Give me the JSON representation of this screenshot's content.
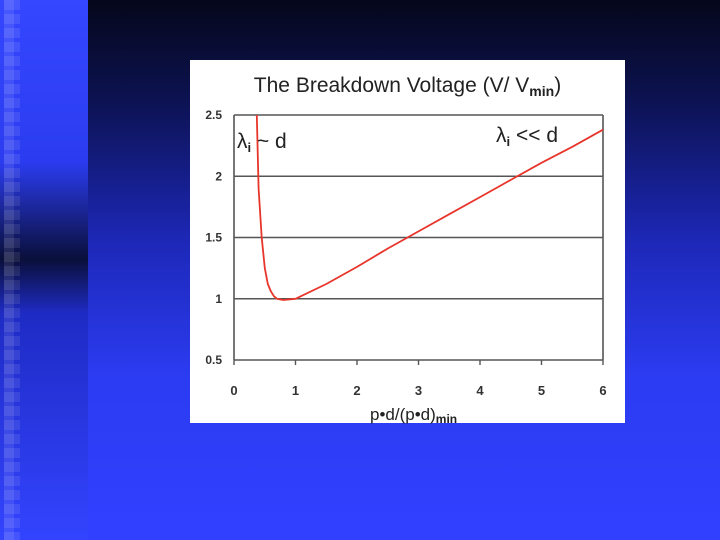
{
  "slide": {
    "accent": "#3040ff"
  },
  "chart_data": {
    "type": "line",
    "title_main": "The Breakdown Voltage (V/ V",
    "title_sub": "min",
    "title_close": ")",
    "xlabel_main": "p•d/(p•d)",
    "xlabel_sub": "min",
    "ylabel": "",
    "xlim": [
      0,
      6
    ],
    "ylim": [
      0.5,
      2.5
    ],
    "x_ticks": [
      "0",
      "1",
      "2",
      "3",
      "4",
      "5",
      "6"
    ],
    "y_ticks": [
      "0.5",
      "1",
      "1.5",
      "2",
      "2.5"
    ],
    "grid": "horizontal",
    "line_color": "#e8352b",
    "annotations": {
      "left_symbol": "λ",
      "left_sub": "i",
      "left_rest": " ~ d",
      "right_symbol": "λ",
      "right_sub": "i",
      "right_rest": " << d"
    },
    "series": [
      {
        "x": [
          0.37,
          0.4,
          0.45,
          0.5,
          0.55,
          0.6,
          0.65,
          0.7,
          0.8,
          1.0,
          1.5,
          2.0,
          2.5,
          3.0,
          3.5,
          4.0,
          4.5,
          5.0,
          5.5,
          6.0
        ],
        "y": [
          2.5,
          1.9,
          1.5,
          1.25,
          1.12,
          1.06,
          1.02,
          1.0,
          0.99,
          1.0,
          1.12,
          1.26,
          1.41,
          1.55,
          1.69,
          1.83,
          1.97,
          2.11,
          2.24,
          2.38
        ]
      }
    ]
  }
}
